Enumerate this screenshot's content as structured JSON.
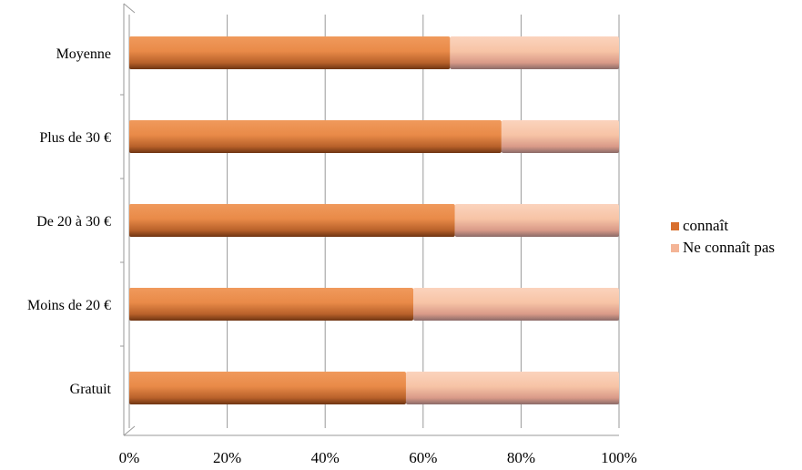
{
  "chart_data": {
    "type": "bar",
    "orientation": "horizontal",
    "stacked": true,
    "percent_stacked": true,
    "categories": [
      "Moyenne",
      "Plus de 30 €",
      "De 20 à 30 €",
      "Moins de 20 €",
      "Gratuit"
    ],
    "series": [
      {
        "name": "connaît",
        "values": [
          65.5,
          76,
          66.5,
          58,
          56.5
        ],
        "color": "#e07b3a"
      },
      {
        "name": "Ne connaît pas",
        "values": [
          34.5,
          24,
          33.5,
          42,
          43.5
        ],
        "color": "#f2b89a"
      }
    ],
    "xlim": [
      0,
      100
    ],
    "xticks": [
      "0%",
      "20%",
      "40%",
      "60%",
      "80%",
      "100%"
    ],
    "grid": true,
    "legend_position": "right",
    "title": "",
    "xlabel": "",
    "ylabel": ""
  }
}
